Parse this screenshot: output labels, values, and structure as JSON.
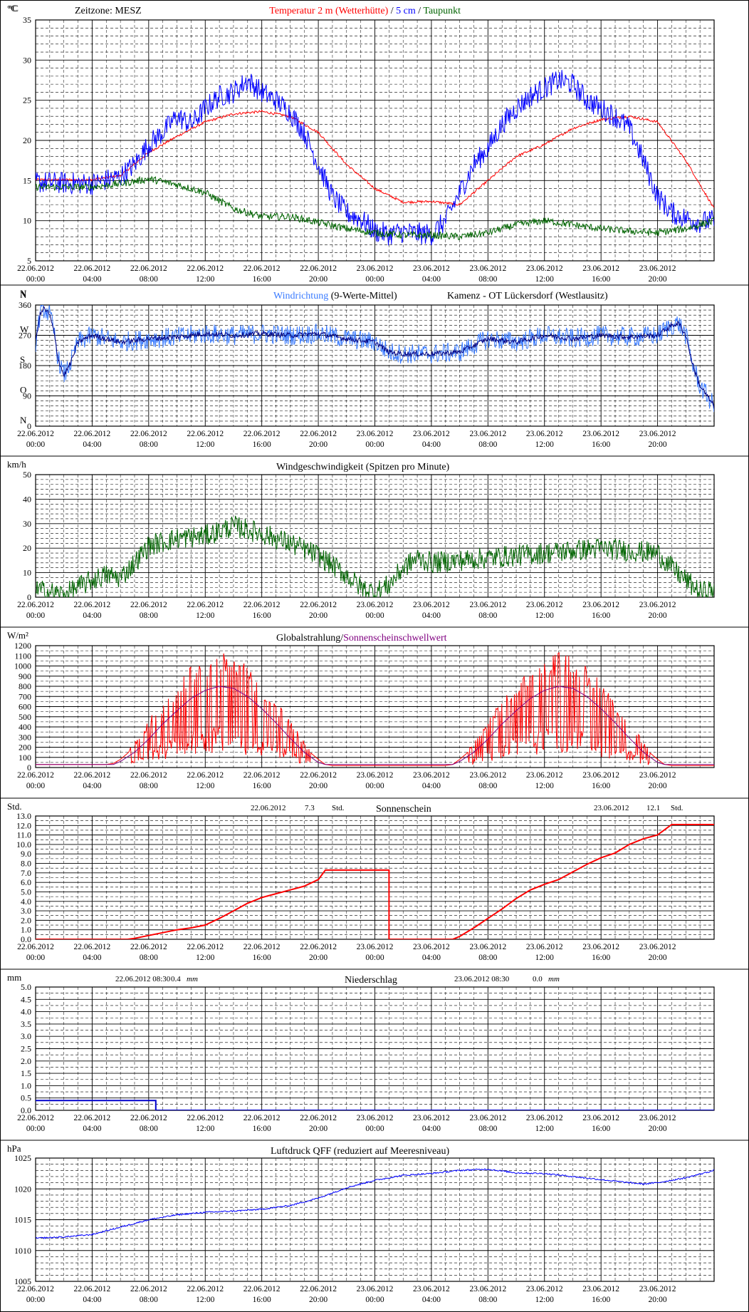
{
  "x_ticks": [
    {
      "date": "22.06.2012",
      "time": "00:00"
    },
    {
      "date": "22.06.2012",
      "time": "04:00"
    },
    {
      "date": "22.06.2012",
      "time": "08:00"
    },
    {
      "date": "22.06.2012",
      "time": "12:00"
    },
    {
      "date": "22.06.2012",
      "time": "16:00"
    },
    {
      "date": "22.06.2012",
      "time": "20:00"
    },
    {
      "date": "23.06.2012",
      "time": "00:00"
    },
    {
      "date": "23.06.2012",
      "time": "04:00"
    },
    {
      "date": "23.06.2012",
      "time": "08:00"
    },
    {
      "date": "23.06.2012",
      "time": "12:00"
    },
    {
      "date": "23.06.2012",
      "time": "16:00"
    },
    {
      "date": "23.06.2012",
      "time": "20:00"
    }
  ],
  "colors": {
    "red": "#ff0000",
    "blue": "#0000ff",
    "lightblue": "#3a7bff",
    "green": "#006400",
    "navy": "#000080",
    "purple": "#800080",
    "darkblue": "#0000cc"
  },
  "chart_data": [
    {
      "id": "temperature",
      "type": "line",
      "unit": "°C",
      "ylim": [
        5,
        35
      ],
      "yticks": [
        5,
        10,
        15,
        20,
        25,
        30,
        35
      ],
      "titles": [
        {
          "text": "Zeitzone: MESZ",
          "color": "#000000"
        },
        {
          "text": "Temperatur 2 m (Wetterhütte)",
          "color": "#ff0000"
        },
        {
          "text": "/",
          "color": "#000000"
        },
        {
          "text": "5 cm",
          "color": "#0000ff"
        },
        {
          "text": "/",
          "color": "#000000"
        },
        {
          "text": "Taupunkt",
          "color": "#006400"
        }
      ],
      "series": [
        {
          "color": "#ff0000",
          "noise": 0.15,
          "x": [
            0,
            4,
            6,
            8,
            10,
            12,
            14,
            16,
            18,
            20,
            22,
            24,
            26,
            28,
            30,
            32,
            34,
            36,
            38,
            40,
            42,
            44,
            46,
            48
          ],
          "y": [
            15.1,
            15.1,
            15.6,
            18.5,
            20.5,
            22.3,
            23.3,
            23.6,
            23,
            21,
            17,
            14,
            12.3,
            12.4,
            12,
            15,
            18,
            19.5,
            21.5,
            22.6,
            23,
            22.3,
            17.5,
            11.5
          ]
        },
        {
          "color": "#0000ff",
          "noise": 1.4,
          "x": [
            0,
            4,
            6,
            7,
            8,
            9,
            10,
            11,
            12,
            13,
            14,
            15,
            16,
            17,
            18,
            19,
            20,
            21,
            22,
            23,
            24,
            25,
            26,
            27,
            28,
            29,
            30,
            31,
            32,
            33,
            34,
            35,
            36,
            37,
            38,
            39,
            40,
            41,
            42,
            43,
            44,
            45,
            46,
            47,
            48
          ],
          "y": [
            14.8,
            14.6,
            15.5,
            17,
            19.5,
            21,
            23,
            22,
            24,
            25.5,
            26,
            27.5,
            26,
            25,
            23.5,
            21,
            17,
            13,
            11,
            10.2,
            8.7,
            8.3,
            8.6,
            8.4,
            8.3,
            10,
            13.5,
            17,
            19,
            22,
            24,
            25.5,
            26.5,
            27.5,
            27,
            25,
            24,
            23,
            21.5,
            17.5,
            13,
            11,
            10.3,
            9.8,
            10
          ]
        },
        {
          "color": "#006400",
          "noise": 0.45,
          "x": [
            0,
            4,
            6,
            8,
            10,
            12,
            14,
            16,
            18,
            20,
            22,
            24,
            26,
            28,
            30,
            32,
            34,
            36,
            38,
            40,
            42,
            44,
            46,
            48
          ],
          "y": [
            14.2,
            14.2,
            14.6,
            15.2,
            14.5,
            13.5,
            11.5,
            10.5,
            10.5,
            9.8,
            9,
            8.5,
            8.2,
            8.2,
            8,
            8.5,
            9.5,
            10,
            9.5,
            9,
            8.7,
            8.5,
            9,
            10
          ]
        }
      ]
    },
    {
      "id": "wind_direction",
      "type": "line",
      "title": "Windrichtung",
      "title_suffix": "(9-Werte-Mittel)",
      "station": "Kamenz - OT Lückersdorf (Westlausitz)",
      "ylim": [
        0,
        360
      ],
      "yticks": [
        0,
        90,
        180,
        270,
        360
      ],
      "ylabels": [
        "N",
        "O",
        "S",
        "W",
        "N"
      ],
      "series": [
        {
          "color": "#3a7bff",
          "noise": 30,
          "x": [
            0,
            0.3,
            0.6,
            1,
            1.3,
            1.6,
            2,
            2.5,
            3,
            4,
            6,
            8,
            10,
            12,
            14,
            16,
            18,
            20,
            22,
            24,
            25,
            26,
            28,
            30,
            32,
            34,
            36,
            38,
            40,
            42,
            44,
            45,
            45.5,
            46,
            46.5,
            47,
            47.5,
            48
          ],
          "y": [
            250,
            330,
            350,
            330,
            280,
            200,
            150,
            190,
            250,
            270,
            250,
            260,
            265,
            275,
            270,
            275,
            270,
            275,
            260,
            250,
            220,
            215,
            215,
            220,
            260,
            250,
            270,
            260,
            270,
            265,
            270,
            300,
            305,
            270,
            180,
            120,
            90,
            60
          ]
        },
        {
          "color": "#000080",
          "noise": 8,
          "x": [
            0,
            0.3,
            0.6,
            1,
            1.3,
            1.6,
            2,
            2.5,
            3,
            4,
            6,
            8,
            10,
            12,
            14,
            16,
            18,
            20,
            22,
            24,
            25,
            26,
            28,
            30,
            32,
            34,
            36,
            38,
            40,
            42,
            44,
            45,
            45.5,
            46,
            46.5,
            47,
            47.5,
            48
          ],
          "y": [
            250,
            330,
            350,
            330,
            280,
            200,
            150,
            190,
            250,
            270,
            250,
            260,
            265,
            275,
            270,
            275,
            270,
            275,
            260,
            250,
            220,
            215,
            215,
            220,
            260,
            250,
            270,
            260,
            270,
            265,
            270,
            300,
            305,
            270,
            180,
            120,
            90,
            60
          ]
        }
      ]
    },
    {
      "id": "wind_speed",
      "type": "line",
      "title": "Windgeschwindigkeit (Spitzen pro Minute)",
      "unit": "km/h",
      "ylim": [
        0,
        50
      ],
      "yticks": [
        0,
        10,
        20,
        30,
        40,
        50
      ],
      "series": [
        {
          "color": "#006400",
          "noise": 4.5,
          "x": [
            0,
            2,
            3,
            4,
            5,
            6,
            7,
            8,
            10,
            12,
            14,
            16,
            18,
            20,
            22,
            23,
            24,
            25,
            26,
            27,
            28,
            30,
            32,
            34,
            36,
            38,
            40,
            42,
            44,
            45,
            46,
            47,
            48
          ],
          "y": [
            3,
            1,
            4,
            7,
            9,
            8,
            14,
            21,
            24,
            25,
            29,
            26,
            22,
            17,
            9,
            4,
            2,
            5,
            12,
            16,
            14,
            15,
            16,
            17,
            18,
            19,
            20,
            19,
            18,
            12,
            7,
            2,
            3
          ]
        }
      ]
    },
    {
      "id": "global_radiation",
      "type": "line",
      "title": "Globalstrahlung/",
      "title2": "Sonnenscheinschwellwert",
      "unit": "W/m²",
      "ylim": [
        0,
        1200
      ],
      "yticks": [
        0,
        100,
        200,
        300,
        400,
        500,
        600,
        700,
        800,
        900,
        1000,
        1100,
        1200
      ],
      "series": [
        {
          "color": "#ff0000",
          "x": [
            0,
            5,
            5.5,
            6,
            7,
            8,
            9,
            10,
            11,
            12,
            13,
            14,
            15,
            16,
            17,
            18,
            19,
            20,
            20.5,
            21,
            29,
            29.5,
            30,
            31,
            32,
            33,
            34,
            35,
            36,
            37,
            38,
            39,
            40,
            41,
            42,
            43,
            44,
            44.5,
            45,
            48
          ],
          "y": [
            30,
            30,
            40,
            80,
            200,
            380,
            530,
            680,
            800,
            880,
            910,
            880,
            800,
            680,
            530,
            380,
            200,
            80,
            30,
            20,
            20,
            30,
            80,
            200,
            380,
            530,
            680,
            800,
            880,
            910,
            880,
            800,
            680,
            530,
            380,
            200,
            80,
            30,
            20,
            20
          ]
        },
        {
          "color": "#800080",
          "x": [
            0,
            5.5,
            6,
            7,
            8,
            9,
            10,
            11,
            12,
            13,
            14,
            15,
            16,
            17,
            18,
            19,
            20,
            20.5,
            29.5,
            30,
            31,
            32,
            33,
            34,
            35,
            36,
            37,
            38,
            39,
            40,
            41,
            42,
            43,
            44,
            44.5,
            48
          ],
          "y": [
            30,
            30,
            60,
            150,
            280,
            430,
            560,
            680,
            760,
            800,
            780,
            700,
            580,
            440,
            290,
            150,
            50,
            30,
            30,
            60,
            150,
            280,
            430,
            560,
            680,
            760,
            800,
            780,
            700,
            580,
            440,
            290,
            150,
            50,
            30,
            30
          ]
        }
      ]
    },
    {
      "id": "sunshine",
      "type": "line",
      "title": "Sonnenschein",
      "unit": "Std.",
      "annotations": [
        {
          "date": "22.06.2012",
          "value": "7.3",
          "unit": "Std."
        },
        {
          "date": "23.06.2012",
          "value": "12.1",
          "unit": "Std."
        }
      ],
      "ylim": [
        0,
        13
      ],
      "yticks": [
        0,
        1,
        2,
        3,
        4,
        5,
        6,
        7,
        8,
        9,
        10,
        11,
        12,
        13
      ],
      "series": [
        {
          "color": "#ff0000",
          "x": [
            0,
            6.5,
            7,
            8,
            9,
            10,
            11,
            12,
            13,
            14,
            15,
            16,
            17,
            18,
            19,
            20,
            20.5,
            25,
            25,
            29.5,
            30,
            31,
            32,
            33,
            34,
            35,
            36,
            37,
            38,
            39,
            40,
            41,
            42,
            43,
            44,
            45,
            48
          ],
          "y": [
            0,
            0,
            0.1,
            0.4,
            0.7,
            1.0,
            1.2,
            1.5,
            2.2,
            3.0,
            3.8,
            4.4,
            4.8,
            5.2,
            5.6,
            6.3,
            7.3,
            7.3,
            0,
            0,
            0.3,
            1.2,
            2.2,
            3.2,
            4.3,
            5.2,
            5.8,
            6.3,
            7.1,
            7.9,
            8.6,
            9.1,
            10.0,
            10.6,
            11.0,
            12.1,
            12.1
          ]
        }
      ]
    },
    {
      "id": "precipitation",
      "type": "line",
      "title": "Niederschlag",
      "unit": "mm",
      "annotations": [
        {
          "date": "22.06.2012 08:30",
          "value": "0.4",
          "unit": "mm"
        },
        {
          "date": "23.06.2012 08:30",
          "value": "0.0",
          "unit": "mm"
        }
      ],
      "ylim": [
        0,
        5
      ],
      "yticks": [
        0,
        0.5,
        1,
        1.5,
        2,
        2.5,
        3,
        3.5,
        4,
        4.5,
        5
      ],
      "series": [
        {
          "color": "#0000cc",
          "x": [
            0,
            8.5,
            8.5,
            48
          ],
          "y": [
            0.4,
            0.4,
            0,
            0
          ]
        }
      ]
    },
    {
      "id": "pressure",
      "type": "line",
      "title": "Luftdruck QFF (reduziert auf Meeresniveau)",
      "unit": "hPa",
      "ylim": [
        1005,
        1025
      ],
      "yticks": [
        1005,
        1010,
        1015,
        1020,
        1025
      ],
      "series": [
        {
          "color": "#0000ff",
          "noise": 0.12,
          "x": [
            0,
            2,
            4,
            6,
            8,
            10,
            12,
            14,
            16,
            18,
            20,
            22,
            24,
            26,
            28,
            30,
            32,
            34,
            36,
            38,
            40,
            42,
            43,
            44,
            46,
            48
          ],
          "y": [
            1012,
            1012.2,
            1012.6,
            1013.8,
            1015,
            1015.8,
            1016.2,
            1016.4,
            1016.7,
            1017.3,
            1018.5,
            1020.2,
            1021.4,
            1022.2,
            1022.5,
            1023,
            1023.2,
            1022.6,
            1022.5,
            1022,
            1021.5,
            1021,
            1020.8,
            1021,
            1021.8,
            1023
          ]
        }
      ]
    }
  ]
}
